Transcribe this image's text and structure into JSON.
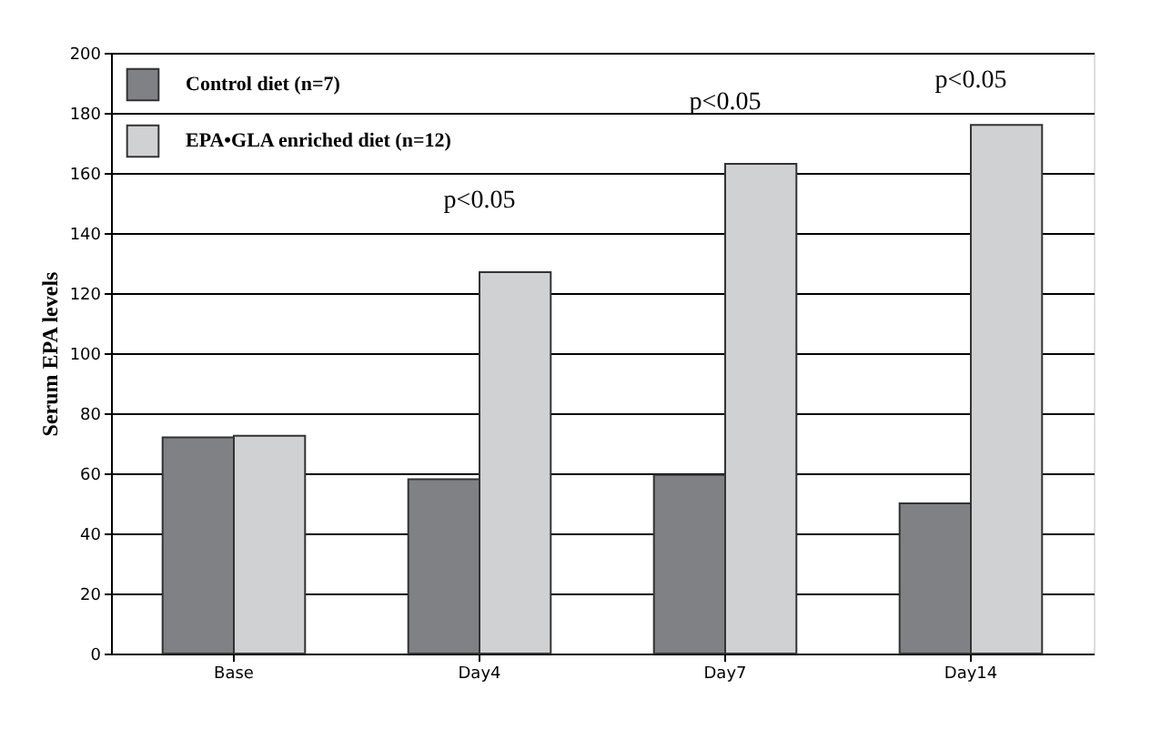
{
  "chart_data": {
    "type": "bar",
    "ylabel": "Serum EPA levels",
    "categories": [
      "Base",
      "Day4",
      "Day7",
      "Day14"
    ],
    "series": [
      {
        "name": "Control diet (n=7)",
        "color": "#808185",
        "values": [
          72,
          58,
          59.5,
          50
        ]
      },
      {
        "name": "EPA•GLA enriched  diet (n=12)",
        "color": "#d0d1d3",
        "values": [
          72.5,
          127,
          163,
          176
        ]
      }
    ],
    "ylim": [
      0,
      200
    ],
    "yticks": [
      0,
      20,
      40,
      60,
      80,
      100,
      120,
      140,
      160,
      180,
      200
    ],
    "grid": "y",
    "legend": "top left",
    "annotations": [
      "p<0.05",
      "p<0.05",
      "p<0.05"
    ]
  }
}
